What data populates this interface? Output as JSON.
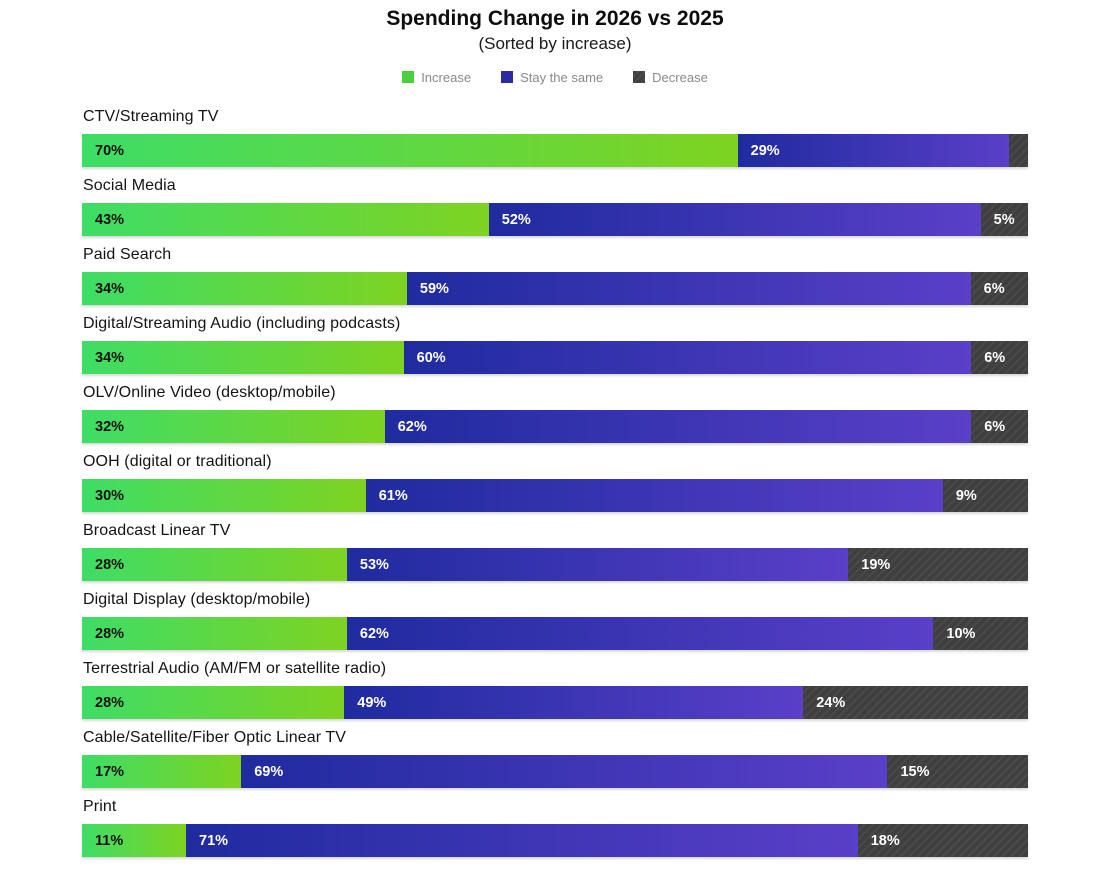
{
  "header": {
    "title": "Spending Change in 2026 vs 2025",
    "subtitle": "(Sorted by increase)",
    "legend": [
      {
        "label": "Increase"
      },
      {
        "label": "Stay the same"
      },
      {
        "label": "Decrease"
      }
    ]
  },
  "colors": {
    "increase_gradient_start": "#3edd66",
    "increase_gradient_end": "#7ed321",
    "stay_same_gradient_start": "#1f2b9f",
    "stay_same_gradient_end": "#5a3fc8",
    "decrease_base": "#3f3f3f",
    "decrease_stripe": "#4a4a4a",
    "legend_text": "#8a8a8a",
    "legend_increase_swatch": "#4ccf3e",
    "legend_stay_same_swatch": "#2b2aa5"
  },
  "rows": [
    {
      "category": "CTV/Streaming TV",
      "increase": 70,
      "same": 29,
      "decrease": 2,
      "increase_label": "70%",
      "same_label": "29%",
      "decrease_label": ""
    },
    {
      "category": "Social Media",
      "increase": 43,
      "same": 52,
      "decrease": 5,
      "increase_label": "43%",
      "same_label": "52%",
      "decrease_label": "5%"
    },
    {
      "category": "Paid Search",
      "increase": 34,
      "same": 59,
      "decrease": 6,
      "increase_label": "34%",
      "same_label": "59%",
      "decrease_label": "6%"
    },
    {
      "category": "Digital/Streaming Audio (including podcasts)",
      "increase": 34,
      "same": 60,
      "decrease": 6,
      "increase_label": "34%",
      "same_label": "60%",
      "decrease_label": "6%"
    },
    {
      "category": "OLV/Online Video (desktop/mobile)",
      "increase": 32,
      "same": 62,
      "decrease": 6,
      "increase_label": "32%",
      "same_label": "62%",
      "decrease_label": "6%"
    },
    {
      "category": "OOH (digital or traditional)",
      "increase": 30,
      "same": 61,
      "decrease": 9,
      "increase_label": "30%",
      "same_label": "61%",
      "decrease_label": "9%"
    },
    {
      "category": "Broadcast Linear TV",
      "increase": 28,
      "same": 53,
      "decrease": 19,
      "increase_label": "28%",
      "same_label": "53%",
      "decrease_label": "19%"
    },
    {
      "category": "Digital Display (desktop/mobile)",
      "increase": 28,
      "same": 62,
      "decrease": 10,
      "increase_label": "28%",
      "same_label": "62%",
      "decrease_label": "10%"
    },
    {
      "category": "Terrestrial Audio (AM/FM or satellite radio)",
      "increase": 28,
      "same": 49,
      "decrease": 24,
      "increase_label": "28%",
      "same_label": "49%",
      "decrease_label": "24%"
    },
    {
      "category": "Cable/Satellite/Fiber Optic Linear TV",
      "increase": 17,
      "same": 69,
      "decrease": 15,
      "increase_label": "17%",
      "same_label": "69%",
      "decrease_label": "15%"
    },
    {
      "category": "Print",
      "increase": 11,
      "same": 71,
      "decrease": 18,
      "increase_label": "11%",
      "same_label": "71%",
      "decrease_label": "18%"
    }
  ],
  "chart_data": {
    "type": "bar",
    "variant": "horizontal-stacked-100pct",
    "title": "Spending Change in 2026 vs 2025",
    "subtitle": "(Sorted by increase)",
    "unit": "percent",
    "legend_position": "top-center",
    "grid": false,
    "categories": [
      "CTV/Streaming TV",
      "Social Media",
      "Paid Search",
      "Digital/Streaming Audio (including podcasts)",
      "OLV/Online Video (desktop/mobile)",
      "OOH (digital or traditional)",
      "Broadcast Linear TV",
      "Digital Display (desktop/mobile)",
      "Terrestrial Audio (AM/FM or satellite radio)",
      "Cable/Satellite/Fiber Optic Linear TV",
      "Print"
    ],
    "series": [
      {
        "name": "Increase",
        "values": [
          70,
          43,
          34,
          34,
          32,
          30,
          28,
          28,
          28,
          17,
          11
        ]
      },
      {
        "name": "Stay the same",
        "values": [
          29,
          52,
          59,
          60,
          62,
          61,
          53,
          62,
          49,
          69,
          71
        ]
      },
      {
        "name": "Decrease",
        "values": [
          2,
          5,
          6,
          6,
          6,
          9,
          19,
          10,
          24,
          15,
          18
        ]
      }
    ],
    "notes": "Each bar normalized to full width; Decrease value for CTV/Streaming TV is drawn as a thin unlabeled sliver."
  }
}
